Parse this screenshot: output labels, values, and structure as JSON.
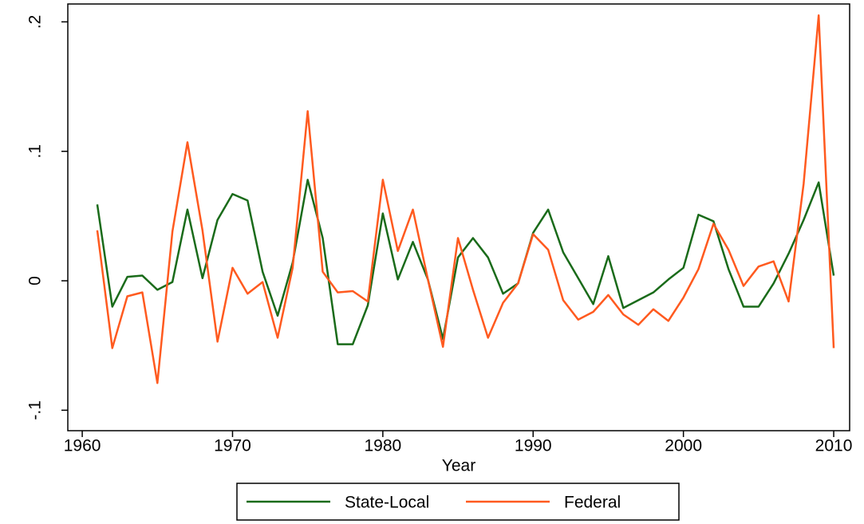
{
  "chart_data": {
    "type": "line",
    "x_label": "Year",
    "x": [
      1961,
      1962,
      1963,
      1964,
      1965,
      1966,
      1967,
      1968,
      1969,
      1970,
      1971,
      1972,
      1973,
      1974,
      1975,
      1976,
      1977,
      1978,
      1979,
      1980,
      1981,
      1982,
      1983,
      1984,
      1985,
      1986,
      1987,
      1988,
      1989,
      1990,
      1991,
      1992,
      1993,
      1994,
      1995,
      1996,
      1997,
      1998,
      1999,
      2000,
      2001,
      2002,
      2003,
      2004,
      2005,
      2006,
      2007,
      2008,
      2009,
      2010
    ],
    "series": [
      {
        "name": "State-Local",
        "color": "#1a6b1a",
        "values": [
          0.059,
          -0.02,
          0.003,
          0.004,
          -0.007,
          -0.001,
          0.055,
          0.002,
          0.047,
          0.067,
          0.062,
          0.007,
          -0.027,
          0.014,
          0.078,
          0.033,
          -0.049,
          -0.049,
          -0.019,
          0.052,
          0.001,
          0.03,
          0.001,
          -0.045,
          0.018,
          0.033,
          0.018,
          -0.01,
          -0.002,
          0.037,
          0.055,
          0.022,
          0.002,
          -0.018,
          0.019,
          -0.021,
          -0.015,
          -0.009,
          0.001,
          0.01,
          0.051,
          0.046,
          0.009,
          -0.02,
          -0.02,
          -0.002,
          0.021,
          0.047,
          0.076,
          0.004
        ]
      },
      {
        "name": "Federal",
        "color": "#ff5a1f",
        "values": [
          0.039,
          -0.052,
          -0.012,
          -0.009,
          -0.079,
          0.038,
          0.107,
          0.039,
          -0.047,
          0.01,
          -0.01,
          -0.001,
          -0.044,
          0.01,
          0.131,
          0.007,
          -0.009,
          -0.008,
          -0.016,
          0.078,
          0.023,
          0.055,
          0.001,
          -0.051,
          0.033,
          -0.007,
          -0.044,
          -0.017,
          -0.002,
          0.036,
          0.024,
          -0.015,
          -0.03,
          -0.024,
          -0.011,
          -0.026,
          -0.034,
          -0.022,
          -0.031,
          -0.013,
          0.009,
          0.044,
          0.024,
          -0.004,
          0.011,
          0.015,
          -0.016,
          0.075,
          0.205,
          -0.052
        ]
      }
    ],
    "xlim": [
      1959.04,
      2011.06
    ],
    "xticks": [
      1960,
      1970,
      1980,
      1990,
      2000,
      2010
    ],
    "ylim": [
      -0.1158,
      0.2138
    ],
    "yticks": [
      {
        "value": -0.1,
        "label": "-.1"
      },
      0,
      {
        "value": 0.1,
        "label": ".1"
      },
      {
        "value": 0.2,
        "label": ".2"
      }
    ],
    "legend": "bottom"
  }
}
